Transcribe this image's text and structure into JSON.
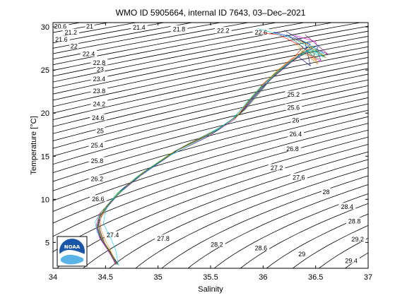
{
  "chart_data": {
    "type": "line",
    "title": "WMO ID 5905664, internal ID 7643, 03–Dec–2021",
    "xlabel": "Salinity",
    "ylabel": "Temperature [°C]",
    "xlim": [
      34,
      37
    ],
    "ylim": [
      2,
      30.5
    ],
    "xticks": [
      "34",
      "34.5",
      "35",
      "35.5",
      "36",
      "36.5",
      "37"
    ],
    "xtick_values": [
      34,
      34.5,
      35,
      35.5,
      36,
      36.5,
      37
    ],
    "yticks": [
      "5",
      "10",
      "15",
      "20",
      "25",
      "30"
    ],
    "ytick_values": [
      5,
      10,
      15,
      20,
      25,
      30
    ],
    "grid": false,
    "density_contours": {
      "levels": [
        20.6,
        21,
        21.2,
        21.4,
        21.6,
        21.8,
        22,
        22.2,
        22.4,
        22.6,
        22.8,
        23,
        23.2,
        23.4,
        23.6,
        23.8,
        24,
        24.2,
        24.4,
        24.6,
        24.8,
        25,
        25.2,
        25.4,
        25.6,
        25.8,
        26,
        26.2,
        26.4,
        26.6,
        26.8,
        27,
        27.2,
        27.4,
        27.6,
        27.8,
        28,
        28.2,
        28.4,
        28.6,
        28.8,
        29,
        29.2,
        29.4
      ],
      "labels": [
        {
          "text": "20.6",
          "s": 34.07,
          "t": 30.0
        },
        {
          "text": "21",
          "s": 34.35,
          "t": 30.0
        },
        {
          "text": "21.2",
          "s": 34.17,
          "t": 29.3
        },
        {
          "text": "21.4",
          "s": 34.82,
          "t": 29.9
        },
        {
          "text": "21.6",
          "s": 34.08,
          "t": 28.5
        },
        {
          "text": "21.8",
          "s": 35.2,
          "t": 29.7
        },
        {
          "text": "22",
          "s": 34.2,
          "t": 27.7
        },
        {
          "text": "22.2",
          "s": 35.62,
          "t": 29.5
        },
        {
          "text": "22.4",
          "s": 34.34,
          "t": 26.8
        },
        {
          "text": "22.6",
          "s": 35.98,
          "t": 29.3
        },
        {
          "text": "22.8",
          "s": 34.44,
          "t": 25.8
        },
        {
          "text": "23",
          "s": 34.45,
          "t": 25.0
        },
        {
          "text": "23.4",
          "s": 34.44,
          "t": 23.9
        },
        {
          "text": "23.8",
          "s": 34.44,
          "t": 22.5
        },
        {
          "text": "24.2",
          "s": 34.44,
          "t": 21.0
        },
        {
          "text": "24.6",
          "s": 34.43,
          "t": 19.4
        },
        {
          "text": "25",
          "s": 34.45,
          "t": 17.9
        },
        {
          "text": "25.2",
          "s": 36.29,
          "t": 22.1
        },
        {
          "text": "25.4",
          "s": 34.42,
          "t": 16.2
        },
        {
          "text": "25.6",
          "s": 36.29,
          "t": 20.6
        },
        {
          "text": "25.8",
          "s": 34.42,
          "t": 14.4
        },
        {
          "text": "26",
          "s": 36.31,
          "t": 19.1
        },
        {
          "text": "26.2",
          "s": 34.42,
          "t": 12.3
        },
        {
          "text": "26.4",
          "s": 36.31,
          "t": 17.5
        },
        {
          "text": "26.6",
          "s": 34.43,
          "t": 10.0
        },
        {
          "text": "26.8",
          "s": 36.28,
          "t": 15.8
        },
        {
          "text": "27.2",
          "s": 36.13,
          "t": 13.6
        },
        {
          "text": "27.4",
          "s": 34.57,
          "t": 5.8
        },
        {
          "text": "27.6",
          "s": 36.34,
          "t": 12.5
        },
        {
          "text": "27.8",
          "s": 35.05,
          "t": 5.4
        },
        {
          "text": "28",
          "s": 36.6,
          "t": 10.8
        },
        {
          "text": "28.2",
          "s": 35.56,
          "t": 4.7
        },
        {
          "text": "28.4",
          "s": 36.8,
          "t": 9.1
        },
        {
          "text": "28.6",
          "s": 35.98,
          "t": 4.3
        },
        {
          "text": "28.8",
          "s": 36.87,
          "t": 7.4
        },
        {
          "text": "29",
          "s": 36.37,
          "t": 3.6
        },
        {
          "text": "29.2",
          "s": 36.9,
          "t": 5.3
        },
        {
          "text": "29.4",
          "s": 36.84,
          "t": 2.8
        }
      ]
    },
    "series": [
      {
        "color": "#ff0000",
        "points": [
          [
            34.61,
            2.5
          ],
          [
            34.54,
            4.0
          ],
          [
            34.47,
            5.2
          ],
          [
            34.43,
            6.6
          ],
          [
            34.44,
            7.8
          ],
          [
            34.52,
            9.3
          ],
          [
            34.65,
            11.0
          ],
          [
            34.85,
            13.0
          ],
          [
            35.15,
            15.5
          ],
          [
            35.5,
            17.6
          ],
          [
            35.75,
            19.6
          ],
          [
            35.88,
            21.6
          ],
          [
            36.0,
            23.4
          ],
          [
            36.15,
            25.0
          ],
          [
            36.3,
            26.5
          ],
          [
            36.38,
            27.7
          ],
          [
            36.15,
            29.1
          ],
          [
            36.0,
            29.3
          ]
        ]
      },
      {
        "color": "#0000ff",
        "points": [
          [
            34.6,
            2.6
          ],
          [
            34.52,
            4.2
          ],
          [
            34.45,
            5.4
          ],
          [
            34.42,
            6.8
          ],
          [
            34.45,
            8.1
          ],
          [
            34.55,
            9.7
          ],
          [
            34.68,
            11.4
          ],
          [
            34.9,
            13.4
          ],
          [
            35.2,
            15.8
          ],
          [
            35.53,
            17.8
          ],
          [
            35.78,
            19.9
          ],
          [
            35.92,
            21.9
          ],
          [
            36.05,
            23.7
          ],
          [
            36.2,
            25.3
          ],
          [
            36.35,
            26.8
          ],
          [
            36.45,
            28.0
          ],
          [
            36.25,
            28.9
          ],
          [
            36.1,
            29.4
          ]
        ]
      },
      {
        "color": "#00aa00",
        "points": [
          [
            34.62,
            2.4
          ],
          [
            34.55,
            3.9
          ],
          [
            34.48,
            5.1
          ],
          [
            34.44,
            6.5
          ],
          [
            34.43,
            7.6
          ],
          [
            34.5,
            9.1
          ],
          [
            34.62,
            10.8
          ],
          [
            34.82,
            12.8
          ],
          [
            35.12,
            15.3
          ],
          [
            35.47,
            17.4
          ],
          [
            35.72,
            19.4
          ],
          [
            35.85,
            21.3
          ],
          [
            35.98,
            23.1
          ],
          [
            36.12,
            24.7
          ],
          [
            36.28,
            26.2
          ],
          [
            36.5,
            27.4
          ],
          [
            36.55,
            26.2
          ],
          [
            36.35,
            27.3
          ]
        ]
      },
      {
        "color": "#ff00ff",
        "points": [
          [
            34.6,
            2.5
          ],
          [
            34.51,
            4.3
          ],
          [
            34.44,
            5.6
          ],
          [
            34.41,
            6.9
          ],
          [
            34.44,
            8.3
          ],
          [
            34.56,
            9.9
          ],
          [
            34.7,
            11.6
          ],
          [
            34.92,
            13.6
          ],
          [
            35.22,
            16.0
          ],
          [
            35.56,
            18.0
          ],
          [
            35.8,
            20.1
          ],
          [
            35.95,
            22.1
          ],
          [
            36.08,
            24.0
          ],
          [
            36.22,
            25.6
          ],
          [
            36.4,
            27.0
          ],
          [
            36.55,
            26.0
          ],
          [
            36.5,
            28.3
          ],
          [
            36.3,
            29.0
          ]
        ]
      },
      {
        "color": "#00cccc",
        "points": [
          [
            34.63,
            2.3
          ],
          [
            34.5,
            4.6
          ],
          [
            34.42,
            6.2
          ],
          [
            34.4,
            7.4
          ],
          [
            34.47,
            8.7
          ],
          [
            34.58,
            10.2
          ],
          [
            34.74,
            12.0
          ],
          [
            34.98,
            14.1
          ],
          [
            35.28,
            16.4
          ],
          [
            35.6,
            18.4
          ],
          [
            35.83,
            20.4
          ],
          [
            35.97,
            22.4
          ],
          [
            36.1,
            24.3
          ],
          [
            36.25,
            25.9
          ],
          [
            36.42,
            27.2
          ],
          [
            36.58,
            26.5
          ],
          [
            36.3,
            28.6
          ],
          [
            35.95,
            29.8
          ]
        ]
      },
      {
        "color": "#000080",
        "points": [
          [
            34.61,
            2.6
          ],
          [
            34.53,
            4.1
          ],
          [
            34.46,
            5.3
          ],
          [
            34.42,
            6.7
          ],
          [
            34.46,
            8.0
          ],
          [
            34.54,
            9.5
          ],
          [
            34.66,
            11.2
          ],
          [
            34.87,
            13.2
          ],
          [
            35.18,
            15.7
          ],
          [
            35.52,
            17.7
          ],
          [
            35.77,
            19.8
          ],
          [
            35.9,
            21.8
          ],
          [
            36.03,
            23.6
          ],
          [
            36.18,
            25.2
          ],
          [
            36.33,
            26.6
          ],
          [
            36.45,
            25.5
          ],
          [
            36.4,
            28.2
          ],
          [
            36.2,
            29.6
          ]
        ]
      },
      {
        "color": "#800080",
        "points": [
          [
            34.6,
            2.4
          ],
          [
            34.54,
            3.8
          ],
          [
            34.49,
            5.0
          ],
          [
            34.45,
            6.3
          ],
          [
            34.44,
            7.5
          ],
          [
            34.51,
            9.0
          ],
          [
            34.63,
            10.7
          ],
          [
            34.83,
            12.7
          ],
          [
            35.13,
            15.2
          ],
          [
            35.48,
            17.3
          ],
          [
            35.73,
            19.3
          ],
          [
            35.86,
            21.2
          ],
          [
            35.99,
            23.0
          ],
          [
            36.14,
            24.6
          ],
          [
            36.29,
            26.1
          ],
          [
            36.48,
            27.6
          ],
          [
            36.62,
            26.8
          ],
          [
            36.4,
            29.1
          ]
        ]
      },
      {
        "color": "#cc6600",
        "points": [
          [
            34.62,
            2.5
          ],
          [
            34.52,
            4.4
          ],
          [
            34.45,
            5.7
          ],
          [
            34.42,
            7.0
          ],
          [
            34.45,
            8.4
          ],
          [
            34.57,
            10.0
          ],
          [
            34.72,
            11.8
          ],
          [
            34.95,
            13.8
          ],
          [
            35.25,
            16.2
          ],
          [
            35.58,
            18.2
          ],
          [
            35.82,
            20.3
          ],
          [
            35.96,
            22.3
          ],
          [
            36.09,
            24.2
          ],
          [
            36.24,
            25.8
          ],
          [
            36.38,
            27.1
          ],
          [
            36.52,
            25.7
          ],
          [
            36.45,
            27.9
          ],
          [
            36.25,
            28.8
          ]
        ]
      },
      {
        "color": "#808000",
        "points": [
          [
            34.61,
            2.4
          ],
          [
            34.53,
            4.0
          ],
          [
            34.46,
            5.4
          ],
          [
            34.43,
            6.6
          ],
          [
            34.44,
            7.9
          ],
          [
            34.53,
            9.4
          ],
          [
            34.66,
            11.1
          ],
          [
            34.86,
            13.1
          ],
          [
            35.16,
            15.6
          ],
          [
            35.51,
            17.7
          ],
          [
            35.76,
            19.7
          ],
          [
            35.89,
            21.7
          ],
          [
            36.02,
            23.5
          ],
          [
            36.16,
            25.1
          ],
          [
            36.32,
            26.4
          ],
          [
            36.47,
            27.8
          ],
          [
            36.6,
            26.4
          ],
          [
            36.35,
            28.5
          ]
        ]
      },
      {
        "color": "#ff8800",
        "points": [
          [
            34.6,
            2.6
          ],
          [
            34.55,
            4.0
          ],
          [
            34.5,
            5.2
          ],
          [
            34.46,
            6.4
          ],
          [
            34.45,
            7.7
          ],
          [
            34.52,
            9.2
          ],
          [
            34.64,
            10.9
          ],
          [
            34.84,
            12.9
          ],
          [
            35.14,
            15.4
          ],
          [
            35.49,
            17.5
          ],
          [
            35.74,
            19.5
          ],
          [
            35.87,
            21.5
          ],
          [
            36.0,
            23.3
          ],
          [
            36.13,
            24.9
          ],
          [
            36.27,
            26.3
          ],
          [
            36.42,
            27.5
          ],
          [
            36.5,
            26.1
          ],
          [
            36.3,
            28.1
          ]
        ]
      },
      {
        "color": "#00ccff",
        "points": [
          [
            34.62,
            2.5
          ],
          [
            34.6,
            4.0
          ],
          [
            34.56,
            5.2
          ],
          [
            34.52,
            6.2
          ],
          [
            34.48,
            7.2
          ],
          [
            34.5,
            8.8
          ],
          [
            34.6,
            10.5
          ],
          [
            34.8,
            12.5
          ],
          [
            35.1,
            15.0
          ],
          [
            35.45,
            17.2
          ],
          [
            35.7,
            19.2
          ],
          [
            35.84,
            21.1
          ],
          [
            35.97,
            22.9
          ],
          [
            36.11,
            24.5
          ],
          [
            36.26,
            26.0
          ],
          [
            36.44,
            27.3
          ],
          [
            36.58,
            26.9
          ],
          [
            36.38,
            28.4
          ]
        ]
      },
      {
        "color": "#008080",
        "points": [
          [
            34.61,
            2.5
          ],
          [
            34.52,
            4.3
          ],
          [
            34.45,
            5.5
          ],
          [
            34.42,
            6.8
          ],
          [
            34.45,
            8.2
          ],
          [
            34.56,
            9.8
          ],
          [
            34.7,
            11.5
          ],
          [
            34.91,
            13.5
          ],
          [
            35.21,
            15.9
          ],
          [
            35.55,
            17.9
          ],
          [
            35.79,
            20.0
          ],
          [
            35.93,
            22.0
          ],
          [
            36.06,
            23.8
          ],
          [
            36.21,
            25.4
          ],
          [
            36.36,
            26.9
          ],
          [
            36.53,
            27.9
          ],
          [
            36.48,
            26.6
          ],
          [
            36.22,
            29.2
          ]
        ]
      }
    ]
  },
  "logo": {
    "text": "NOAA"
  }
}
